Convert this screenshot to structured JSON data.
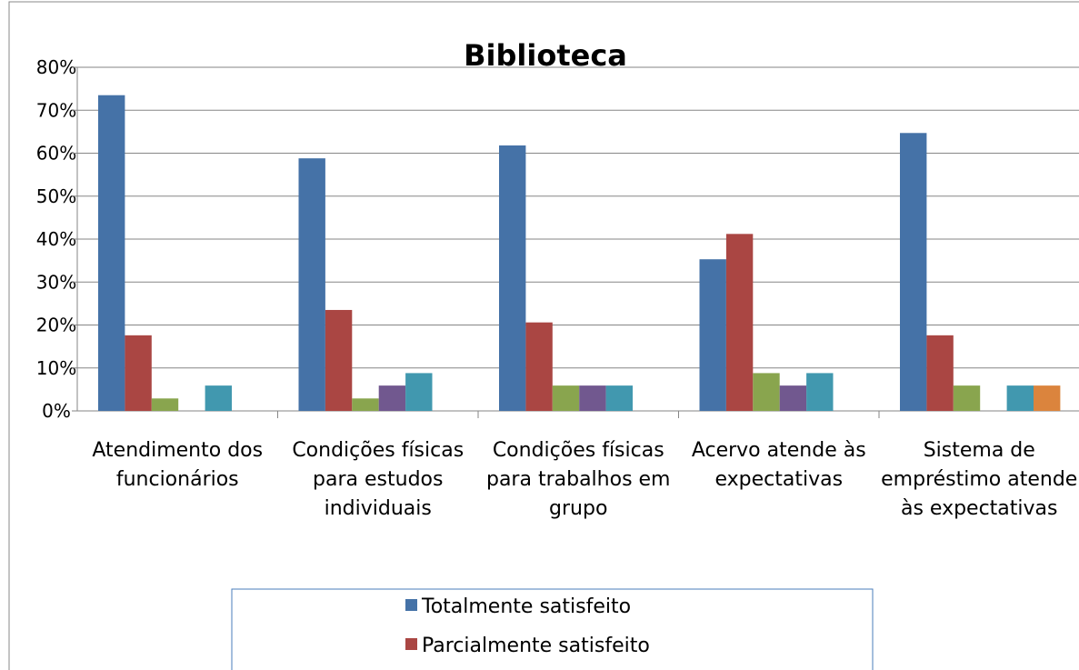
{
  "chart_data": {
    "type": "bar",
    "title": "Biblioteca",
    "categories": [
      "Atendimento dos funcionários",
      "Condições físicas para estudos individuais",
      "Condições físicas para trabalhos em grupo",
      "Acervo atende às expectativas",
      "Sistema de empréstimo atende às expectativas"
    ],
    "series": [
      {
        "name": "Totalmente satisfeito",
        "color": "#4572a7",
        "values": [
          73.5,
          58.8,
          61.8,
          35.3,
          64.7
        ]
      },
      {
        "name": "Parcialmente satisfeito",
        "color": "#aa4643",
        "values": [
          17.6,
          23.5,
          20.6,
          41.2,
          17.6
        ]
      },
      {
        "color": "#89a54e",
        "values": [
          2.9,
          2.9,
          5.9,
          8.8,
          5.9
        ]
      },
      {
        "color": "#71588f",
        "values": [
          0,
          5.9,
          5.9,
          5.9,
          0
        ]
      },
      {
        "color": "#4198af",
        "values": [
          5.9,
          8.8,
          5.9,
          8.8,
          5.9
        ]
      },
      {
        "color": "#db843d",
        "values": [
          0,
          0,
          0,
          0,
          5.9
        ]
      }
    ],
    "ylim": [
      0,
      80
    ],
    "yticks": [
      {
        "value": 0,
        "label": "0%"
      },
      {
        "value": 10,
        "label": "10%"
      },
      {
        "value": 20,
        "label": "20%"
      },
      {
        "value": 30,
        "label": "30%"
      },
      {
        "value": 40,
        "label": "40%"
      },
      {
        "value": 50,
        "label": "50%"
      },
      {
        "value": 60,
        "label": "60%"
      },
      {
        "value": 70,
        "label": "70%"
      },
      {
        "value": 80,
        "label": "80%"
      }
    ],
    "grid": true
  }
}
